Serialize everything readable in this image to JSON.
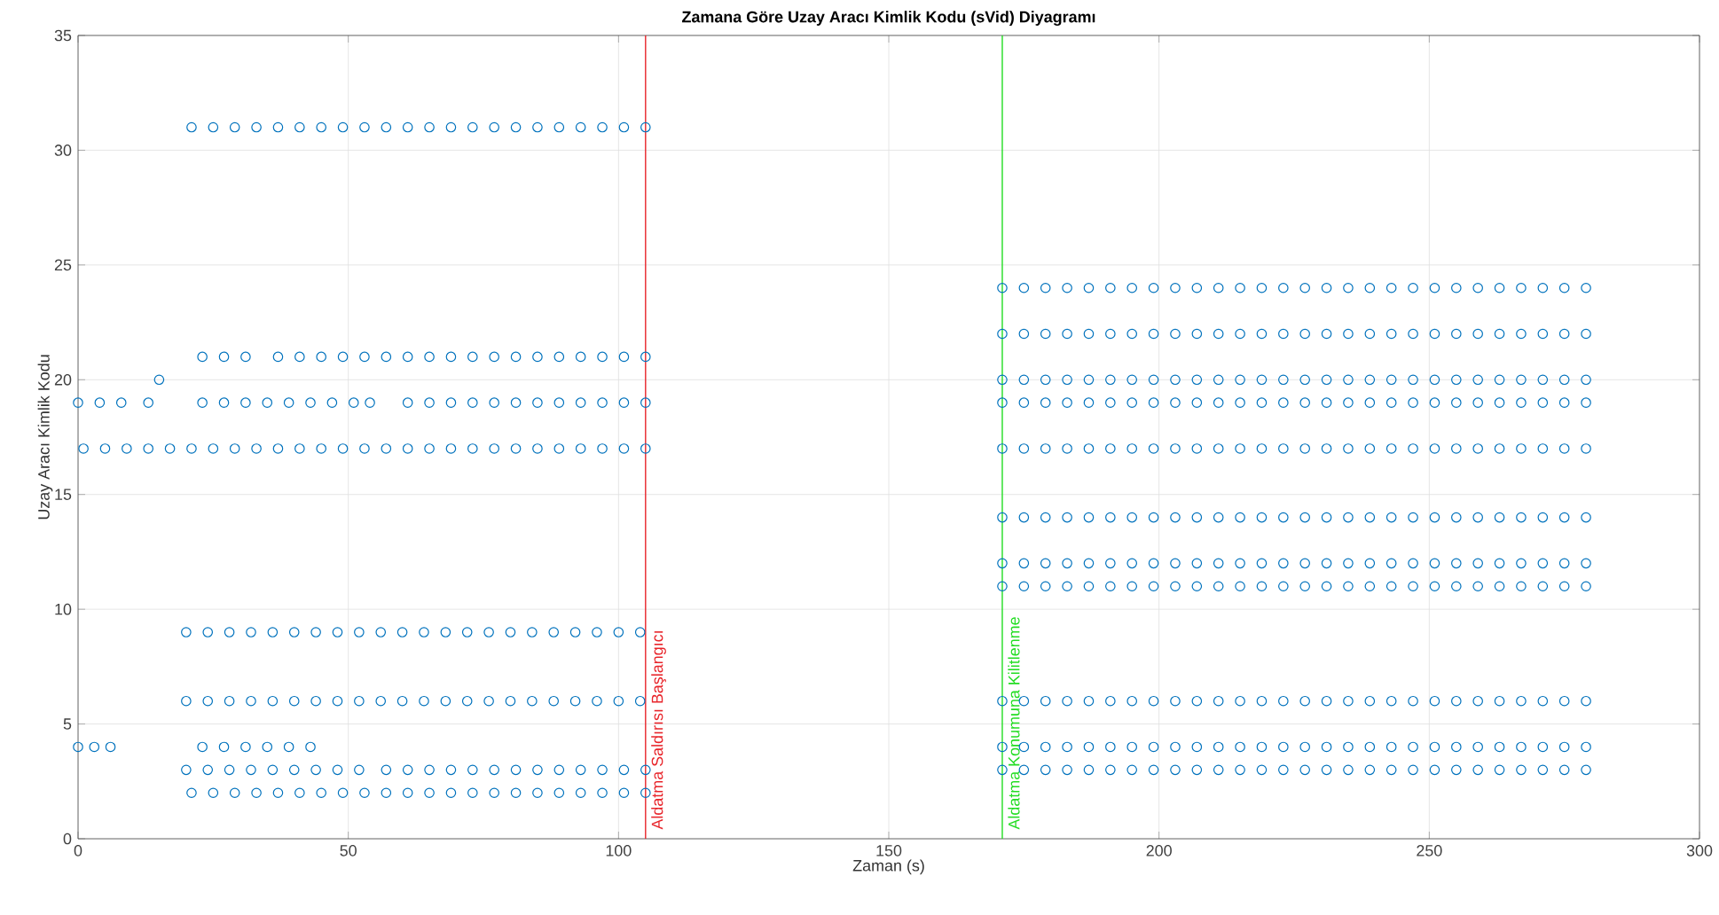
{
  "chart_data": {
    "type": "scatter",
    "title": "Zamana Göre Uzay Aracı Kimlik Kodu (sVid) Diyagramı",
    "xlabel": "Zaman (s)",
    "ylabel": "Uzay Aracı Kimlik Kodu",
    "xlim": [
      0,
      300
    ],
    "xticks": [
      0,
      50,
      100,
      150,
      200,
      250,
      300
    ],
    "ylim": [
      0,
      35
    ],
    "yticks": [
      0,
      5,
      10,
      15,
      20,
      25,
      30,
      35
    ],
    "grid": true,
    "marker": "circle",
    "series": [
      {
        "color": "#0072bd",
        "x": [
          21,
          25,
          29,
          33,
          37,
          41,
          45,
          49,
          53,
          57,
          61,
          65,
          69,
          73,
          77,
          81,
          85,
          89,
          93,
          97,
          101,
          105
        ],
        "values": [
          31,
          31,
          31,
          31,
          31,
          31,
          31,
          31,
          31,
          31,
          31,
          31,
          31,
          31,
          31,
          31,
          31,
          31,
          31,
          31,
          31,
          31
        ]
      },
      {
        "color": "#0072bd",
        "x": [
          23,
          27,
          31,
          37,
          41,
          45,
          49,
          53,
          57,
          61,
          65,
          69,
          73,
          77,
          81,
          85,
          89,
          93,
          97,
          101,
          105
        ],
        "values": [
          21,
          21,
          21,
          21,
          21,
          21,
          21,
          21,
          21,
          21,
          21,
          21,
          21,
          21,
          21,
          21,
          21,
          21,
          21,
          21,
          21
        ]
      },
      {
        "color": "#0072bd",
        "x": [
          15
        ],
        "values": [
          20
        ]
      },
      {
        "color": "#0072bd",
        "x": [
          0,
          4,
          8,
          13,
          23,
          27,
          31,
          35,
          39,
          43,
          47,
          51,
          54,
          61,
          65,
          69,
          73,
          77,
          81,
          85,
          89,
          93,
          97,
          101,
          105
        ],
        "values": [
          19,
          19,
          19,
          19,
          19,
          19,
          19,
          19,
          19,
          19,
          19,
          19,
          19,
          19,
          19,
          19,
          19,
          19,
          19,
          19,
          19,
          19,
          19,
          19,
          19
        ]
      },
      {
        "color": "#0072bd",
        "x": [
          1,
          5,
          9,
          13,
          17,
          21,
          25,
          29,
          33,
          37,
          41,
          45,
          49,
          53,
          57,
          61,
          65,
          69,
          73,
          77,
          81,
          85,
          89,
          93,
          97,
          101,
          105
        ],
        "values": [
          17,
          17,
          17,
          17,
          17,
          17,
          17,
          17,
          17,
          17,
          17,
          17,
          17,
          17,
          17,
          17,
          17,
          17,
          17,
          17,
          17,
          17,
          17,
          17,
          17,
          17,
          17
        ]
      },
      {
        "color": "#0072bd",
        "x": [
          20,
          24,
          28,
          32,
          36,
          40,
          44,
          48,
          52,
          56,
          60,
          64,
          68,
          72,
          76,
          80,
          84,
          88,
          92,
          96,
          100,
          104
        ],
        "values": [
          9,
          9,
          9,
          9,
          9,
          9,
          9,
          9,
          9,
          9,
          9,
          9,
          9,
          9,
          9,
          9,
          9,
          9,
          9,
          9,
          9,
          9
        ]
      },
      {
        "color": "#0072bd",
        "x": [
          20,
          24,
          28,
          32,
          36,
          40,
          44,
          48,
          52,
          56,
          60,
          64,
          68,
          72,
          76,
          80,
          84,
          88,
          92,
          96,
          100,
          104
        ],
        "values": [
          6,
          6,
          6,
          6,
          6,
          6,
          6,
          6,
          6,
          6,
          6,
          6,
          6,
          6,
          6,
          6,
          6,
          6,
          6,
          6,
          6,
          6
        ]
      },
      {
        "color": "#0072bd",
        "x": [
          0,
          3,
          6,
          23,
          27,
          31,
          35,
          39,
          43
        ],
        "values": [
          4,
          4,
          4,
          4,
          4,
          4,
          4,
          4,
          4
        ]
      },
      {
        "color": "#0072bd",
        "x": [
          20,
          24,
          28,
          32,
          36,
          40,
          44,
          48,
          52,
          57,
          61,
          65,
          69,
          73,
          77,
          81,
          85,
          89,
          93,
          97,
          101,
          105
        ],
        "values": [
          3,
          3,
          3,
          3,
          3,
          3,
          3,
          3,
          3,
          3,
          3,
          3,
          3,
          3,
          3,
          3,
          3,
          3,
          3,
          3,
          3,
          3
        ]
      },
      {
        "color": "#0072bd",
        "x": [
          21,
          25,
          29,
          33,
          37,
          41,
          45,
          49,
          53,
          57,
          61,
          65,
          69,
          73,
          77,
          81,
          85,
          89,
          93,
          97,
          101,
          105
        ],
        "values": [
          2,
          2,
          2,
          2,
          2,
          2,
          2,
          2,
          2,
          2,
          2,
          2,
          2,
          2,
          2,
          2,
          2,
          2,
          2,
          2,
          2,
          2
        ]
      },
      {
        "color": "#0072bd",
        "x": [
          171,
          175,
          179,
          183,
          187,
          191,
          195,
          199,
          203,
          207,
          211,
          215,
          219,
          223,
          227,
          231,
          235,
          239,
          243,
          247,
          251,
          255,
          259,
          263,
          267,
          271,
          275,
          279
        ],
        "values": [
          24,
          24,
          24,
          24,
          24,
          24,
          24,
          24,
          24,
          24,
          24,
          24,
          24,
          24,
          24,
          24,
          24,
          24,
          24,
          24,
          24,
          24,
          24,
          24,
          24,
          24,
          24,
          24
        ]
      },
      {
        "color": "#0072bd",
        "x": [
          171,
          175,
          179,
          183,
          187,
          191,
          195,
          199,
          203,
          207,
          211,
          215,
          219,
          223,
          227,
          231,
          235,
          239,
          243,
          247,
          251,
          255,
          259,
          263,
          267,
          271,
          275,
          279
        ],
        "values": [
          22,
          22,
          22,
          22,
          22,
          22,
          22,
          22,
          22,
          22,
          22,
          22,
          22,
          22,
          22,
          22,
          22,
          22,
          22,
          22,
          22,
          22,
          22,
          22,
          22,
          22,
          22,
          22
        ]
      },
      {
        "color": "#0072bd",
        "x": [
          171,
          175,
          179,
          183,
          187,
          191,
          195,
          199,
          203,
          207,
          211,
          215,
          219,
          223,
          227,
          231,
          235,
          239,
          243,
          247,
          251,
          255,
          259,
          263,
          267,
          271,
          275,
          279
        ],
        "values": [
          20,
          20,
          20,
          20,
          20,
          20,
          20,
          20,
          20,
          20,
          20,
          20,
          20,
          20,
          20,
          20,
          20,
          20,
          20,
          20,
          20,
          20,
          20,
          20,
          20,
          20,
          20,
          20
        ]
      },
      {
        "color": "#0072bd",
        "x": [
          171,
          175,
          179,
          183,
          187,
          191,
          195,
          199,
          203,
          207,
          211,
          215,
          219,
          223,
          227,
          231,
          235,
          239,
          243,
          247,
          251,
          255,
          259,
          263,
          267,
          271,
          275,
          279
        ],
        "values": [
          19,
          19,
          19,
          19,
          19,
          19,
          19,
          19,
          19,
          19,
          19,
          19,
          19,
          19,
          19,
          19,
          19,
          19,
          19,
          19,
          19,
          19,
          19,
          19,
          19,
          19,
          19,
          19
        ]
      },
      {
        "color": "#0072bd",
        "x": [
          171,
          175,
          179,
          183,
          187,
          191,
          195,
          199,
          203,
          207,
          211,
          215,
          219,
          223,
          227,
          231,
          235,
          239,
          243,
          247,
          251,
          255,
          259,
          263,
          267,
          271,
          275,
          279
        ],
        "values": [
          17,
          17,
          17,
          17,
          17,
          17,
          17,
          17,
          17,
          17,
          17,
          17,
          17,
          17,
          17,
          17,
          17,
          17,
          17,
          17,
          17,
          17,
          17,
          17,
          17,
          17,
          17,
          17
        ]
      },
      {
        "color": "#0072bd",
        "x": [
          171,
          175,
          179,
          183,
          187,
          191,
          195,
          199,
          203,
          207,
          211,
          215,
          219,
          223,
          227,
          231,
          235,
          239,
          243,
          247,
          251,
          255,
          259,
          263,
          267,
          271,
          275,
          279
        ],
        "values": [
          14,
          14,
          14,
          14,
          14,
          14,
          14,
          14,
          14,
          14,
          14,
          14,
          14,
          14,
          14,
          14,
          14,
          14,
          14,
          14,
          14,
          14,
          14,
          14,
          14,
          14,
          14,
          14
        ]
      },
      {
        "color": "#0072bd",
        "x": [
          171,
          175,
          179,
          183,
          187,
          191,
          195,
          199,
          203,
          207,
          211,
          215,
          219,
          223,
          227,
          231,
          235,
          239,
          243,
          247,
          251,
          255,
          259,
          263,
          267,
          271,
          275,
          279
        ],
        "values": [
          12,
          12,
          12,
          12,
          12,
          12,
          12,
          12,
          12,
          12,
          12,
          12,
          12,
          12,
          12,
          12,
          12,
          12,
          12,
          12,
          12,
          12,
          12,
          12,
          12,
          12,
          12,
          12
        ]
      },
      {
        "color": "#0072bd",
        "x": [
          171,
          175,
          179,
          183,
          187,
          191,
          195,
          199,
          203,
          207,
          211,
          215,
          219,
          223,
          227,
          231,
          235,
          239,
          243,
          247,
          251,
          255,
          259,
          263,
          267,
          271,
          275,
          279
        ],
        "values": [
          11,
          11,
          11,
          11,
          11,
          11,
          11,
          11,
          11,
          11,
          11,
          11,
          11,
          11,
          11,
          11,
          11,
          11,
          11,
          11,
          11,
          11,
          11,
          11,
          11,
          11,
          11,
          11
        ]
      },
      {
        "color": "#0072bd",
        "x": [
          171,
          175,
          179,
          183,
          187,
          191,
          195,
          199,
          203,
          207,
          211,
          215,
          219,
          223,
          227,
          231,
          235,
          239,
          243,
          247,
          251,
          255,
          259,
          263,
          267,
          271,
          275,
          279
        ],
        "values": [
          6,
          6,
          6,
          6,
          6,
          6,
          6,
          6,
          6,
          6,
          6,
          6,
          6,
          6,
          6,
          6,
          6,
          6,
          6,
          6,
          6,
          6,
          6,
          6,
          6,
          6,
          6,
          6
        ]
      },
      {
        "color": "#0072bd",
        "x": [
          171,
          175,
          179,
          183,
          187,
          191,
          195,
          199,
          203,
          207,
          211,
          215,
          219,
          223,
          227,
          231,
          235,
          239,
          243,
          247,
          251,
          255,
          259,
          263,
          267,
          271,
          275,
          279
        ],
        "values": [
          4,
          4,
          4,
          4,
          4,
          4,
          4,
          4,
          4,
          4,
          4,
          4,
          4,
          4,
          4,
          4,
          4,
          4,
          4,
          4,
          4,
          4,
          4,
          4,
          4,
          4,
          4,
          4
        ]
      },
      {
        "color": "#0072bd",
        "x": [
          171,
          175,
          179,
          183,
          187,
          191,
          195,
          199,
          203,
          207,
          211,
          215,
          219,
          223,
          227,
          231,
          235,
          239,
          243,
          247,
          251,
          255,
          259,
          263,
          267,
          271,
          275,
          279
        ],
        "values": [
          3,
          3,
          3,
          3,
          3,
          3,
          3,
          3,
          3,
          3,
          3,
          3,
          3,
          3,
          3,
          3,
          3,
          3,
          3,
          3,
          3,
          3,
          3,
          3,
          3,
          3,
          3,
          3
        ]
      }
    ],
    "ref_lines": [
      {
        "axis": "x",
        "value": 105,
        "label": "Aldatma Saldırısı Başlangıcı",
        "color": "#e8242a"
      },
      {
        "axis": "x",
        "value": 171,
        "label": "Aldatma Konumuna Kilitlenme",
        "color": "#22dd22"
      }
    ]
  }
}
